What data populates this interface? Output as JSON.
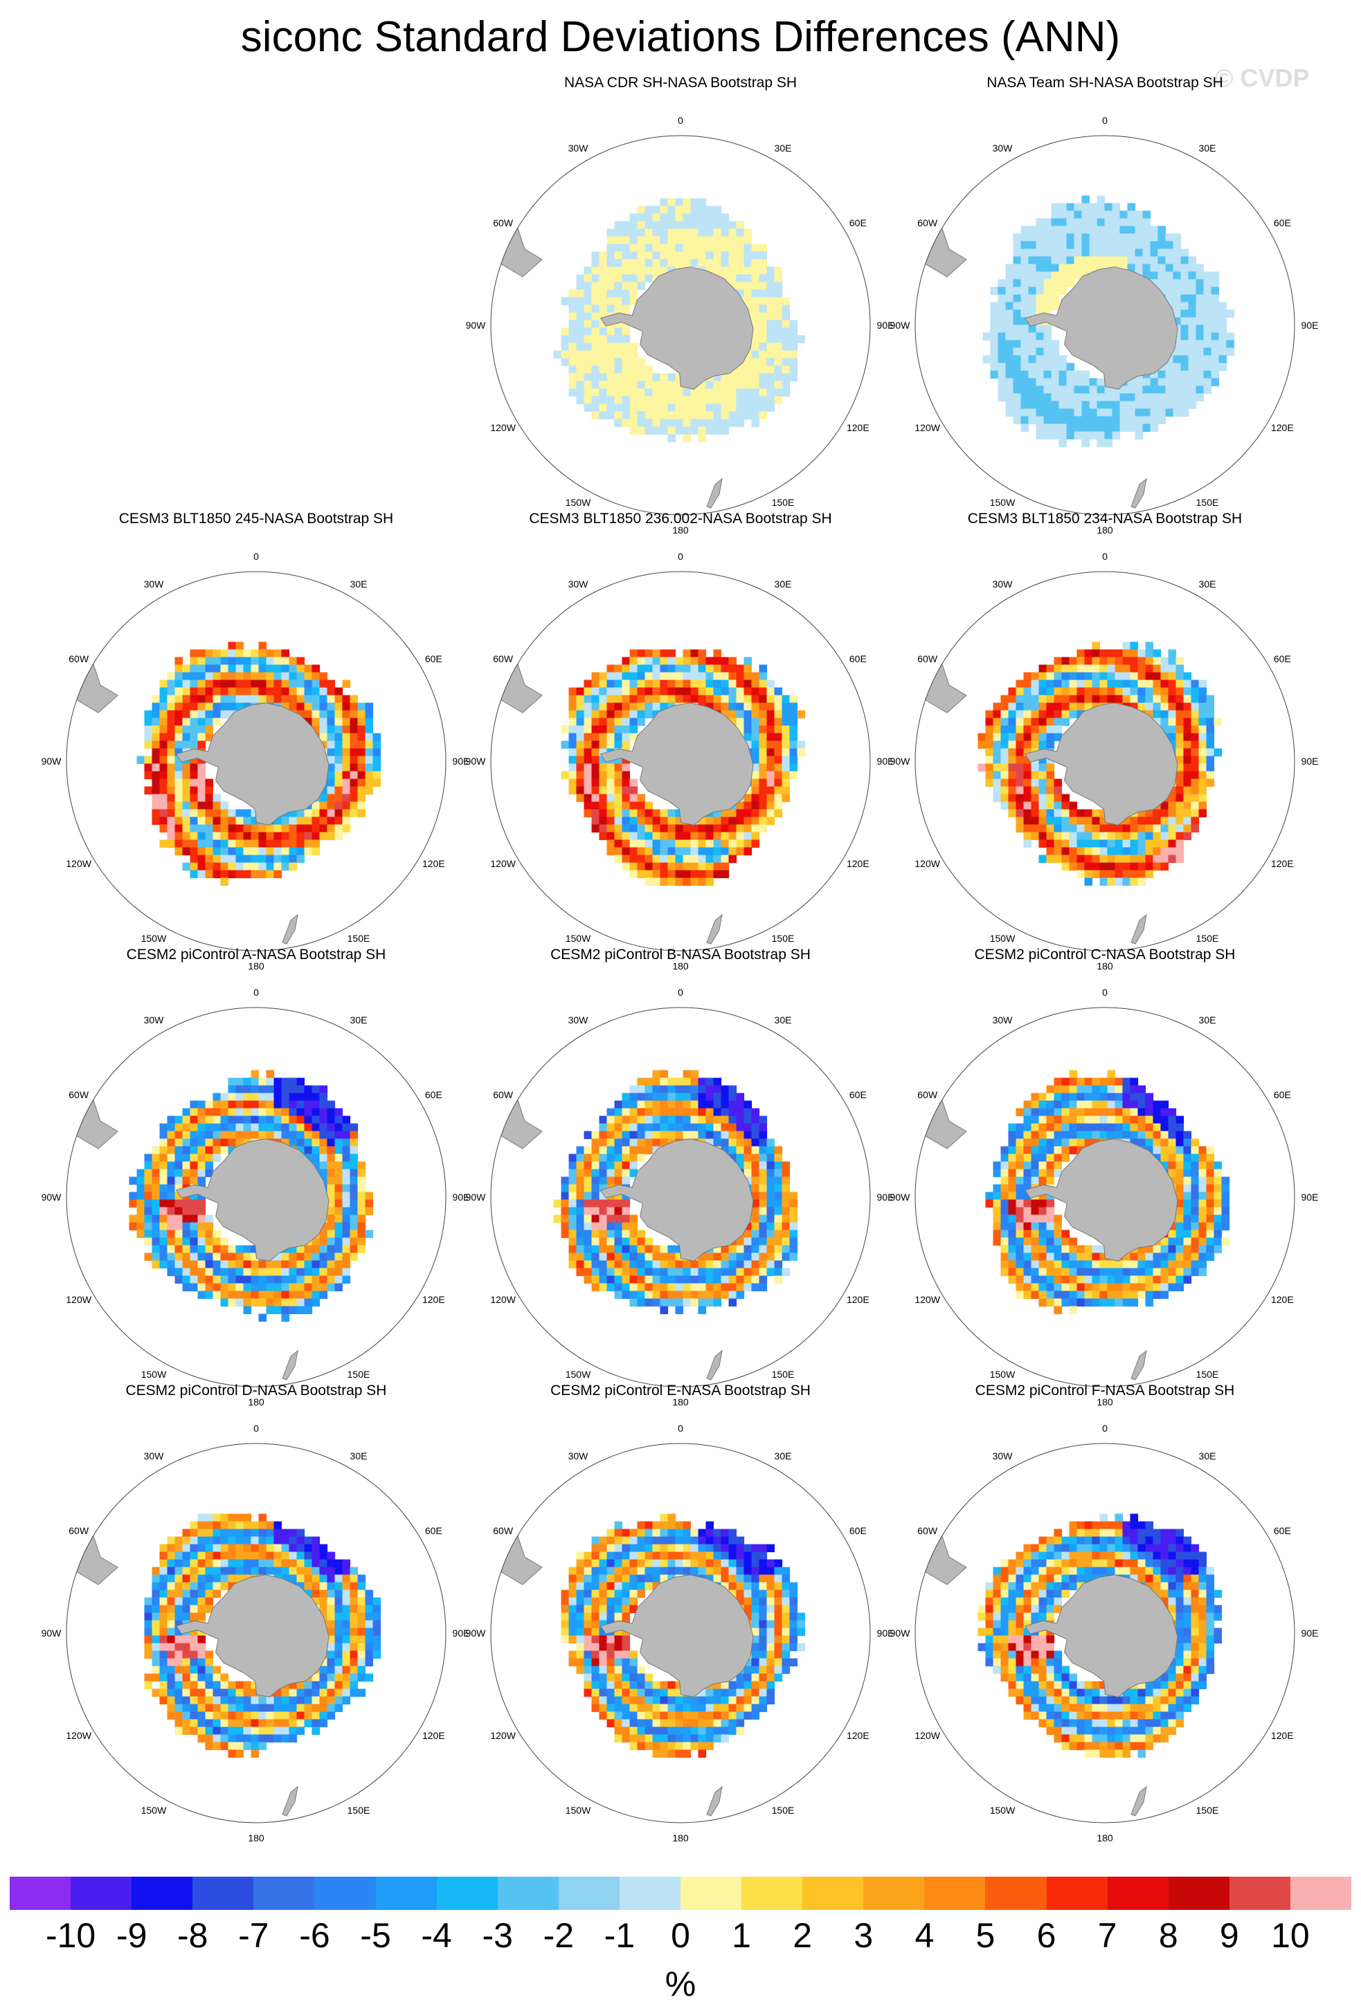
{
  "title": "siconc Standard Deviations Differences (ANN)",
  "copyright": "© CVDP",
  "chart_data": {
    "type": "heatmap",
    "projection": "south polar stereographic",
    "variable": "siconc",
    "units": "%",
    "longitude_labels": [
      "0",
      "30E",
      "60E",
      "90E",
      "120E",
      "150E",
      "180",
      "150W",
      "120W",
      "90W",
      "60W",
      "30W"
    ],
    "panels": [
      {
        "title": "NASA CDR SH-NASA Bootstrap SH",
        "pattern": "weak_positive"
      },
      {
        "title": "NASA Team SH-NASA Bootstrap SH",
        "pattern": "weak_negative"
      },
      {
        "title": "CESM3 BLT1850 245-NASA Bootstrap SH",
        "pattern": "strong_positive"
      },
      {
        "title": "CESM3 BLT1850 236.002-NASA Bootstrap SH",
        "pattern": "strong_positive"
      },
      {
        "title": "CESM3 BLT1850 234-NASA Bootstrap SH",
        "pattern": "strong_positive"
      },
      {
        "title": "CESM2 piControl A-NASA Bootstrap SH",
        "pattern": "mixed"
      },
      {
        "title": "CESM2 piControl B-NASA Bootstrap SH",
        "pattern": "mixed"
      },
      {
        "title": "CESM2 piControl C-NASA Bootstrap SH",
        "pattern": "mixed"
      },
      {
        "title": "CESM2 piControl D-NASA Bootstrap SH",
        "pattern": "mixed"
      },
      {
        "title": "CESM2 piControl E-NASA Bootstrap SH",
        "pattern": "mixed"
      },
      {
        "title": "CESM2 piControl F-NASA Bootstrap SH",
        "pattern": "mixed"
      }
    ],
    "colorbar": {
      "levels": [
        "-10",
        "-9",
        "-8",
        "-7",
        "-6",
        "-5",
        "-4",
        "-3",
        "-2",
        "-1",
        "0",
        "1",
        "2",
        "3",
        "4",
        "5",
        "6",
        "7",
        "8",
        "9",
        "10"
      ],
      "colors": [
        "#8b2cf0",
        "#4a1df0",
        "#1111f0",
        "#2b4ee0",
        "#3572e8",
        "#2a86f5",
        "#1f9df8",
        "#16b8f6",
        "#55c3f2",
        "#8fd3f0",
        "#bde3f6",
        "#fdf5a0",
        "#fbe04a",
        "#fcc226",
        "#fca51c",
        "#fc8a14",
        "#fc5e0e",
        "#f72a0a",
        "#e60a0a",
        "#c80808",
        "#e04848",
        "#fbb0b0"
      ],
      "units": "%"
    }
  }
}
